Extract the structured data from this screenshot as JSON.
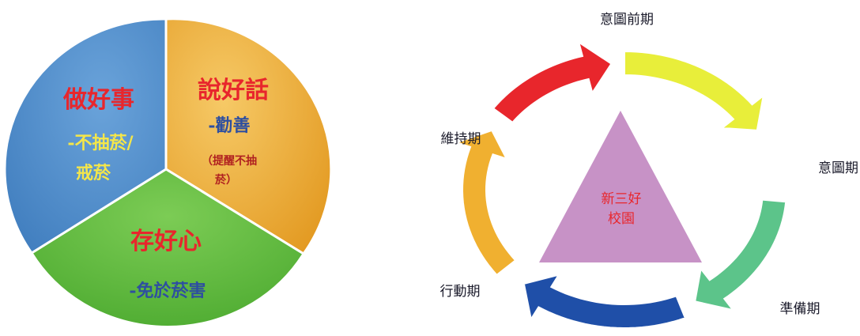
{
  "pie": {
    "segments": [
      {
        "title": "說好話",
        "subtitle": "-勸善",
        "note_line1": "（提醒不抽",
        "note_line2": "菸）",
        "color": "#f0b43c"
      },
      {
        "title": "存好心",
        "subtitle": "-免於菸害",
        "color": "#5dbb3d"
      },
      {
        "title": "做好事",
        "subtitle_line1": "-不抽菸/",
        "subtitle_line2": "戒菸",
        "color": "#4f8fcf"
      }
    ],
    "colors": {
      "title": "#e8262c",
      "subtitle_blue": "#2e4fa0",
      "subtitle_yellow": "#f4e64a",
      "note": "#b02020"
    }
  },
  "cycle": {
    "center_line1": "新三好",
    "center_line2": "校園",
    "center_color": "#c792c6",
    "center_text_color": "#e8262c",
    "stages": [
      {
        "label": "意圖前期",
        "arrow_color": "#e8ee3a"
      },
      {
        "label": "意圖期",
        "arrow_color": "#5cc48a"
      },
      {
        "label": "準備期",
        "arrow_color": "#1f4fa8"
      },
      {
        "label": "行動期",
        "arrow_color": "#f0b030"
      },
      {
        "label": "維持期",
        "arrow_color": "#e8262c"
      }
    ]
  }
}
